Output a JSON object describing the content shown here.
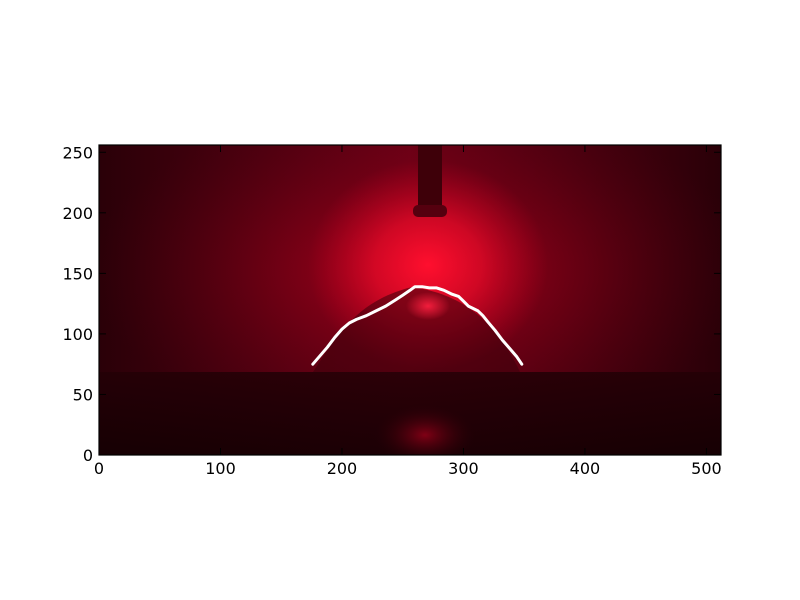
{
  "chart_data": {
    "type": "line",
    "title": "",
    "xlabel": "",
    "ylabel": "",
    "xlim": [
      0,
      512
    ],
    "ylim": [
      0,
      256
    ],
    "grid": false,
    "x_ticks": [
      0,
      100,
      200,
      300,
      400,
      500
    ],
    "y_ticks": [
      0,
      50,
      100,
      150,
      200,
      250
    ],
    "x_tick_labels": [
      "0",
      "100",
      "200",
      "300",
      "400",
      "500"
    ],
    "y_tick_labels": [
      "0",
      "50",
      "100",
      "150",
      "200",
      "250"
    ],
    "background": "image-red-glow",
    "colors": {
      "line": "#ffffff",
      "glow": "#ff1030",
      "background": "#2a0008"
    },
    "series": [
      {
        "x": [
          176,
          182,
          188,
          194,
          200,
          206,
          212,
          220,
          228,
          236,
          244,
          250,
          256,
          260,
          266,
          272,
          278,
          284,
          290,
          296,
          300,
          304,
          308,
          312,
          316,
          320,
          326,
          332,
          338,
          344,
          348
        ],
        "values": [
          75,
          82,
          89,
          97,
          104,
          109,
          112,
          115,
          119,
          123,
          128,
          132,
          136,
          139,
          139,
          138,
          138,
          136,
          133,
          131,
          127,
          123,
          121,
          119,
          115,
          110,
          103,
          95,
          88,
          81,
          75
        ]
      }
    ]
  }
}
